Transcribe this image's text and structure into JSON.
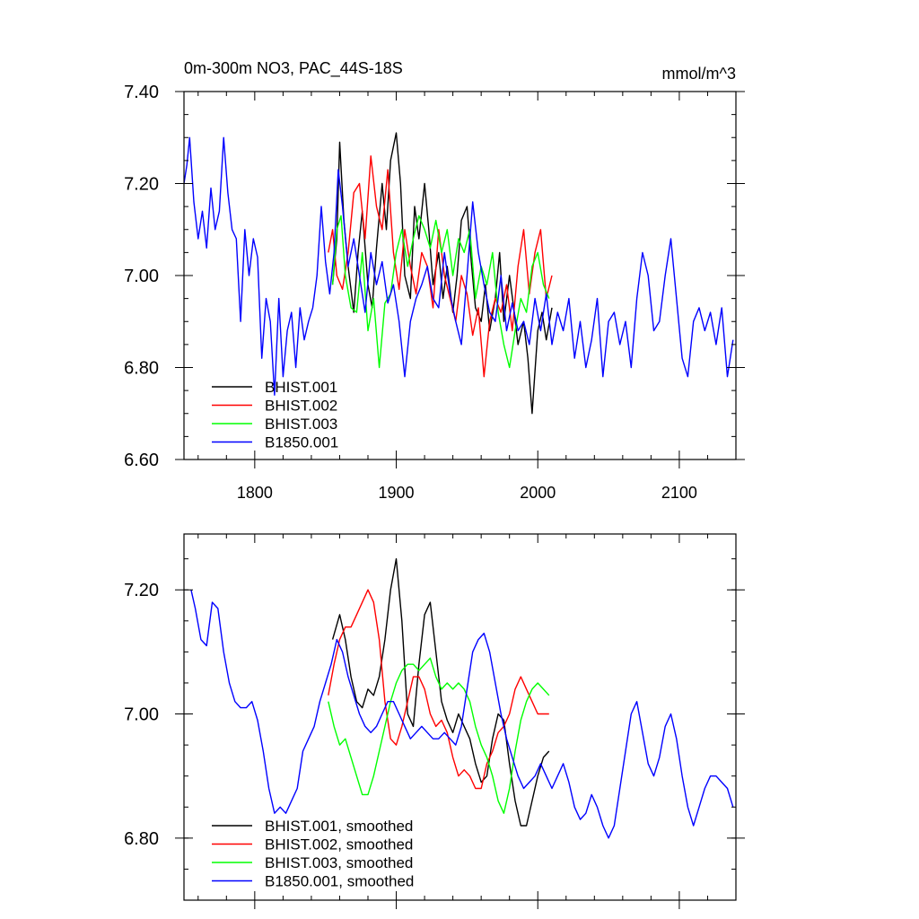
{
  "chart_data": [
    {
      "type": "line",
      "title": "0m-300m NO3, PAC_44S-18S",
      "units": "mmol/m^3",
      "xlabel": "",
      "ylabel": "",
      "xlim": [
        1750,
        2140
      ],
      "ylim": [
        6.6,
        7.4
      ],
      "x_ticks": [
        1800,
        1900,
        2000,
        2100
      ],
      "x_tick_labels": [
        "1800",
        "1900",
        "2000",
        "2100"
      ],
      "y_ticks": [
        6.6,
        6.8,
        7.0,
        7.2,
        7.4
      ],
      "y_tick_labels": [
        "6.60",
        "6.80",
        "7.00",
        "7.20",
        "7.40"
      ],
      "legend": "bottom-left",
      "series": [
        {
          "name": "BHIST.001",
          "color": "#000000",
          "x": [
            1855,
            1858,
            1860,
            1863,
            1866,
            1870,
            1873,
            1876,
            1880,
            1883,
            1886,
            1890,
            1893,
            1896,
            1900,
            1903,
            1906,
            1910,
            1913,
            1916,
            1920,
            1923,
            1926,
            1930,
            1933,
            1936,
            1940,
            1943,
            1946,
            1950,
            1953,
            1956,
            1960,
            1963,
            1966,
            1970,
            1973,
            1976,
            1980,
            1983,
            1986,
            1990,
            1993,
            1996,
            2000,
            2003,
            2006,
            2010
          ],
          "values": [
            6.98,
            7.08,
            7.29,
            7.12,
            7.02,
            6.92,
            7.05,
            7.14,
            6.98,
            6.93,
            7.06,
            7.2,
            7.1,
            7.25,
            7.31,
            7.2,
            7.0,
            6.95,
            7.15,
            7.08,
            7.2,
            7.1,
            6.98,
            7.05,
            6.95,
            7.02,
            6.92,
            7.0,
            7.12,
            7.15,
            7.03,
            6.93,
            6.9,
            6.98,
            6.88,
            6.95,
            7.05,
            6.9,
            7.0,
            6.93,
            6.85,
            6.9,
            6.82,
            6.7,
            6.88,
            6.92,
            6.86,
            6.93
          ]
        },
        {
          "name": "BHIST.002",
          "color": "#ff0000",
          "x": [
            1852,
            1855,
            1858,
            1862,
            1866,
            1870,
            1874,
            1878,
            1882,
            1886,
            1890,
            1894,
            1898,
            1902,
            1906,
            1910,
            1914,
            1918,
            1922,
            1926,
            1930,
            1934,
            1938,
            1942,
            1946,
            1950,
            1954,
            1958,
            1962,
            1966,
            1970,
            1974,
            1978,
            1982,
            1986,
            1990,
            1994,
            1998,
            2002,
            2006,
            2010
          ],
          "values": [
            7.05,
            7.1,
            7.0,
            6.97,
            7.05,
            7.18,
            7.2,
            7.08,
            7.26,
            7.15,
            7.1,
            7.23,
            7.05,
            6.97,
            7.1,
            7.02,
            6.96,
            7.05,
            7.02,
            6.93,
            7.1,
            7.0,
            6.95,
            6.9,
            7.0,
            6.96,
            6.87,
            6.93,
            6.78,
            6.9,
            6.95,
            6.92,
            6.98,
            6.88,
            7.02,
            7.1,
            6.96,
            7.05,
            7.1,
            6.95,
            7.0
          ]
        },
        {
          "name": "BHIST.003",
          "color": "#00ff00",
          "x": [
            1855,
            1858,
            1861,
            1864,
            1868,
            1872,
            1876,
            1880,
            1884,
            1888,
            1892,
            1896,
            1900,
            1904,
            1908,
            1912,
            1916,
            1920,
            1924,
            1928,
            1932,
            1936,
            1940,
            1944,
            1948,
            1952,
            1956,
            1960,
            1964,
            1968,
            1972,
            1976,
            1980,
            1984,
            1988,
            1992,
            1996,
            2000,
            2004,
            2008
          ],
          "values": [
            6.98,
            7.1,
            7.13,
            7.0,
            6.93,
            6.92,
            7.05,
            6.88,
            6.95,
            6.8,
            6.94,
            6.96,
            7.05,
            7.1,
            7.02,
            7.08,
            7.13,
            7.1,
            7.06,
            7.12,
            7.05,
            7.1,
            7.0,
            7.08,
            7.05,
            7.1,
            6.95,
            7.02,
            6.98,
            7.05,
            6.92,
            6.85,
            6.8,
            6.88,
            6.95,
            6.92,
            7.02,
            7.05,
            6.98,
            6.95
          ]
        },
        {
          "name": "B1850.001",
          "color": "#0000ff",
          "x": [
            1750,
            1752,
            1754,
            1757,
            1760,
            1763,
            1766,
            1769,
            1772,
            1775,
            1778,
            1781,
            1784,
            1787,
            1790,
            1793,
            1796,
            1799,
            1802,
            1805,
            1808,
            1811,
            1814,
            1817,
            1820,
            1823,
            1826,
            1829,
            1832,
            1835,
            1838,
            1841,
            1844,
            1847,
            1850,
            1853,
            1856,
            1859,
            1862,
            1866,
            1870,
            1874,
            1878,
            1882,
            1886,
            1890,
            1894,
            1898,
            1902,
            1906,
            1910,
            1914,
            1918,
            1922,
            1926,
            1930,
            1934,
            1938,
            1942,
            1946,
            1950,
            1954,
            1958,
            1962,
            1966,
            1970,
            1974,
            1978,
            1982,
            1986,
            1990,
            1994,
            1998,
            2002,
            2006,
            2010,
            2014,
            2018,
            2022,
            2026,
            2030,
            2034,
            2038,
            2042,
            2046,
            2050,
            2054,
            2058,
            2062,
            2066,
            2070,
            2074,
            2078,
            2082,
            2086,
            2090,
            2094,
            2098,
            2102,
            2106,
            2110,
            2114,
            2118,
            2122,
            2126,
            2130,
            2134,
            2138
          ],
          "values": [
            7.2,
            7.24,
            7.3,
            7.16,
            7.08,
            7.14,
            7.06,
            7.19,
            7.1,
            7.14,
            7.3,
            7.18,
            7.1,
            7.08,
            6.9,
            7.1,
            7.0,
            7.08,
            7.04,
            6.82,
            6.95,
            6.9,
            6.74,
            6.95,
            6.78,
            6.88,
            6.92,
            6.8,
            6.93,
            6.86,
            6.9,
            6.93,
            7.0,
            7.15,
            7.03,
            6.96,
            7.05,
            7.23,
            7.15,
            7.02,
            7.08,
            7.0,
            6.92,
            7.05,
            6.98,
            7.03,
            6.94,
            6.98,
            6.9,
            6.78,
            6.9,
            6.95,
            6.98,
            7.02,
            6.95,
            6.93,
            7.05,
            6.96,
            6.9,
            6.85,
            7.0,
            7.16,
            7.05,
            6.98,
            6.92,
            6.9,
            7.0,
            6.88,
            6.94,
            6.88,
            6.9,
            6.85,
            6.95,
            6.88,
            6.96,
            6.85,
            6.92,
            6.88,
            6.95,
            6.82,
            6.9,
            6.8,
            6.86,
            6.95,
            6.78,
            6.9,
            6.92,
            6.85,
            6.9,
            6.8,
            6.95,
            7.05,
            7.0,
            6.88,
            6.9,
            7.0,
            7.08,
            6.95,
            6.82,
            6.78,
            6.9,
            6.93,
            6.88,
            6.92,
            6.85,
            6.93,
            6.78,
            6.86
          ]
        }
      ]
    },
    {
      "type": "line",
      "title": "",
      "xlabel": "",
      "ylabel": "",
      "xlim": [
        1750,
        2140
      ],
      "ylim": [
        6.7,
        7.29
      ],
      "x_ticks": [
        1800,
        1900,
        2000,
        2100
      ],
      "y_ticks": [
        6.8,
        7.0,
        7.2
      ],
      "y_tick_labels": [
        "6.80",
        "7.00",
        "7.20"
      ],
      "legend": "bottom-left",
      "series": [
        {
          "name": "BHIST.001, smoothed",
          "color": "#000000",
          "x": [
            1855,
            1860,
            1864,
            1868,
            1872,
            1876,
            1880,
            1884,
            1888,
            1892,
            1896,
            1900,
            1904,
            1908,
            1912,
            1916,
            1920,
            1924,
            1928,
            1932,
            1936,
            1940,
            1944,
            1948,
            1952,
            1956,
            1960,
            1964,
            1968,
            1972,
            1976,
            1980,
            1984,
            1988,
            1992,
            1996,
            2000,
            2004,
            2008
          ],
          "values": [
            7.12,
            7.16,
            7.12,
            7.06,
            7.02,
            7.01,
            7.04,
            7.03,
            7.06,
            7.12,
            7.2,
            7.25,
            7.15,
            7.0,
            6.98,
            7.08,
            7.16,
            7.18,
            7.1,
            7.02,
            6.99,
            6.97,
            7.0,
            6.98,
            6.96,
            6.92,
            6.89,
            6.9,
            6.96,
            7.0,
            6.99,
            6.92,
            6.86,
            6.82,
            6.82,
            6.86,
            6.9,
            6.93,
            6.94
          ]
        },
        {
          "name": "BHIST.002, smoothed",
          "color": "#ff0000",
          "x": [
            1852,
            1856,
            1860,
            1864,
            1868,
            1872,
            1876,
            1880,
            1884,
            1888,
            1892,
            1896,
            1900,
            1904,
            1908,
            1912,
            1916,
            1920,
            1924,
            1928,
            1932,
            1936,
            1940,
            1944,
            1948,
            1952,
            1956,
            1960,
            1964,
            1968,
            1972,
            1976,
            1980,
            1984,
            1988,
            1992,
            1996,
            2000,
            2004,
            2008
          ],
          "values": [
            7.03,
            7.08,
            7.12,
            7.14,
            7.14,
            7.16,
            7.18,
            7.2,
            7.18,
            7.12,
            7.02,
            6.96,
            6.95,
            6.98,
            7.02,
            7.06,
            7.06,
            7.04,
            7.0,
            6.98,
            6.99,
            6.97,
            6.93,
            6.9,
            6.91,
            6.9,
            6.88,
            6.88,
            6.92,
            6.94,
            6.97,
            6.98,
            7.0,
            7.04,
            7.06,
            7.04,
            7.02,
            7.0,
            7.0,
            7.0
          ]
        },
        {
          "name": "BHIST.003, smoothed",
          "color": "#00ff00",
          "x": [
            1852,
            1856,
            1860,
            1864,
            1868,
            1872,
            1876,
            1880,
            1884,
            1888,
            1892,
            1896,
            1900,
            1904,
            1908,
            1912,
            1916,
            1920,
            1924,
            1928,
            1932,
            1936,
            1940,
            1944,
            1948,
            1952,
            1956,
            1960,
            1964,
            1968,
            1972,
            1976,
            1980,
            1984,
            1988,
            1992,
            1996,
            2000,
            2004,
            2008
          ],
          "values": [
            7.02,
            6.98,
            6.95,
            6.96,
            6.93,
            6.9,
            6.87,
            6.87,
            6.9,
            6.94,
            6.98,
            7.02,
            7.05,
            7.07,
            7.08,
            7.08,
            7.07,
            7.08,
            7.09,
            7.06,
            7.04,
            7.05,
            7.04,
            7.05,
            7.04,
            7.02,
            6.98,
            6.95,
            6.93,
            6.9,
            6.86,
            6.84,
            6.88,
            6.94,
            6.99,
            7.02,
            7.04,
            7.05,
            7.04,
            7.03
          ]
        },
        {
          "name": "B1850.001, smoothed",
          "color": "#0000ff",
          "x": [
            1755,
            1758,
            1762,
            1766,
            1770,
            1774,
            1778,
            1782,
            1786,
            1790,
            1794,
            1798,
            1802,
            1806,
            1810,
            1814,
            1818,
            1822,
            1826,
            1830,
            1834,
            1838,
            1842,
            1846,
            1850,
            1854,
            1858,
            1862,
            1866,
            1870,
            1874,
            1878,
            1882,
            1886,
            1890,
            1894,
            1898,
            1902,
            1906,
            1910,
            1914,
            1918,
            1922,
            1926,
            1930,
            1934,
            1938,
            1942,
            1946,
            1950,
            1954,
            1958,
            1962,
            1966,
            1970,
            1974,
            1978,
            1982,
            1986,
            1990,
            1994,
            1998,
            2002,
            2006,
            2010,
            2014,
            2018,
            2022,
            2026,
            2030,
            2034,
            2038,
            2042,
            2046,
            2050,
            2054,
            2058,
            2062,
            2066,
            2070,
            2074,
            2078,
            2082,
            2086,
            2090,
            2094,
            2098,
            2102,
            2106,
            2110,
            2114,
            2118,
            2122,
            2126,
            2130,
            2134,
            2138
          ],
          "values": [
            7.2,
            7.17,
            7.12,
            7.11,
            7.18,
            7.17,
            7.1,
            7.05,
            7.02,
            7.01,
            7.01,
            7.02,
            6.99,
            6.94,
            6.88,
            6.84,
            6.85,
            6.84,
            6.86,
            6.88,
            6.94,
            6.96,
            6.98,
            7.02,
            7.05,
            7.08,
            7.12,
            7.1,
            7.06,
            7.03,
            7.0,
            6.98,
            6.97,
            6.98,
            7.0,
            7.02,
            7.02,
            7.0,
            6.98,
            6.96,
            6.97,
            6.98,
            6.97,
            6.96,
            6.96,
            6.97,
            6.96,
            6.95,
            6.98,
            7.04,
            7.1,
            7.12,
            7.13,
            7.1,
            7.05,
            7.0,
            6.96,
            6.93,
            6.9,
            6.88,
            6.89,
            6.9,
            6.92,
            6.9,
            6.88,
            6.9,
            6.92,
            6.89,
            6.85,
            6.83,
            6.84,
            6.87,
            6.85,
            6.82,
            6.8,
            6.82,
            6.88,
            6.94,
            7.0,
            7.02,
            6.97,
            6.92,
            6.9,
            6.93,
            6.98,
            7.0,
            6.96,
            6.9,
            6.85,
            6.82,
            6.85,
            6.88,
            6.9,
            6.9,
            6.89,
            6.88,
            6.85
          ]
        }
      ]
    }
  ]
}
